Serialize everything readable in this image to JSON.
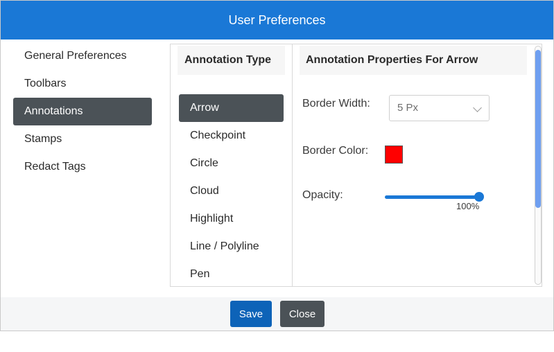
{
  "header": {
    "title": "User Preferences"
  },
  "nav": {
    "items": [
      {
        "label": "General Preferences",
        "active": false
      },
      {
        "label": "Toolbars",
        "active": false
      },
      {
        "label": "Annotations",
        "active": true
      },
      {
        "label": "Stamps",
        "active": false
      },
      {
        "label": "Redact Tags",
        "active": false
      }
    ]
  },
  "types": {
    "header": "Annotation Type",
    "items": [
      {
        "label": "Arrow",
        "active": true
      },
      {
        "label": "Checkpoint",
        "active": false
      },
      {
        "label": "Circle",
        "active": false
      },
      {
        "label": "Cloud",
        "active": false
      },
      {
        "label": "Highlight",
        "active": false
      },
      {
        "label": "Line / Polyline",
        "active": false
      },
      {
        "label": "Pen",
        "active": false
      }
    ]
  },
  "props": {
    "header": "Annotation Properties For Arrow",
    "border_width": {
      "label": "Border Width:",
      "value": "5 Px"
    },
    "border_color": {
      "label": "Border Color:",
      "color": "#ff0000"
    },
    "opacity": {
      "label": "Opacity:",
      "value_text": "100%",
      "value": 1.0
    }
  },
  "footer": {
    "save_label": "Save",
    "close_label": "Close"
  },
  "colors": {
    "accent": "#1a78d6",
    "active_item": "#4b5257",
    "save_button": "#0d63b8"
  }
}
